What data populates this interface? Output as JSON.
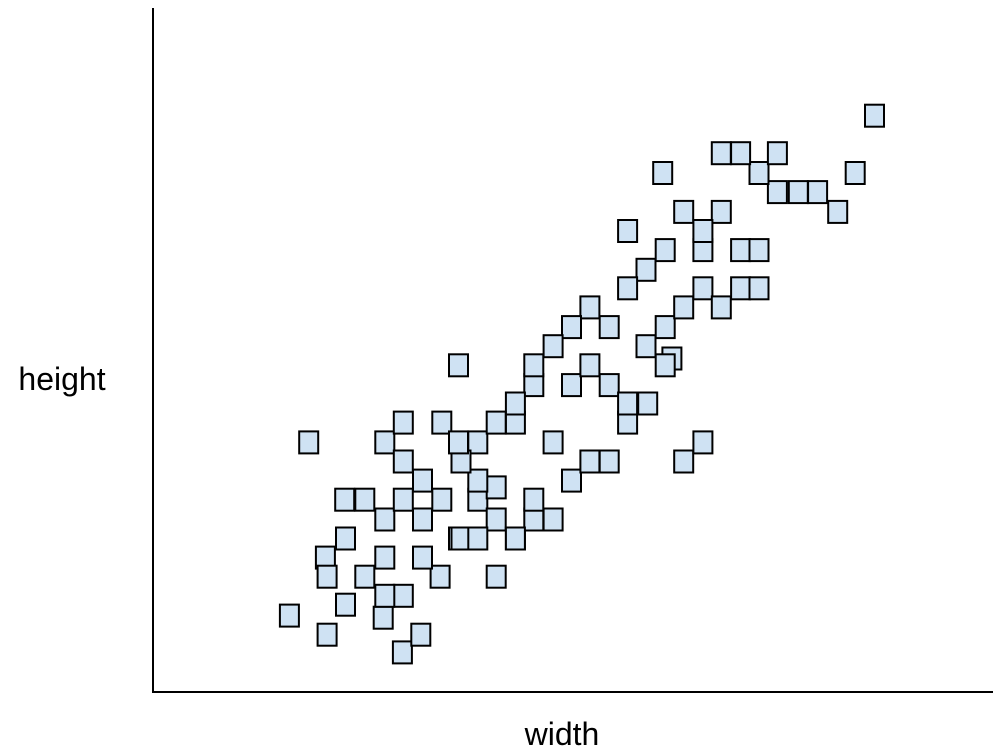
{
  "chart_data": {
    "type": "scatter",
    "title": "",
    "xlabel": "width",
    "ylabel": "height",
    "xlim": [
      0,
      100
    ],
    "ylim": [
      0,
      100
    ],
    "grid": false,
    "legend": "none",
    "marker": "square",
    "colors": {
      "fill": "#cfe2f3",
      "stroke": "#000000",
      "axis": "#000000"
    },
    "series": [
      {
        "points": [
          [
            16.3,
            11.2
          ],
          [
            20.8,
            8.4
          ],
          [
            23.0,
            12.8
          ],
          [
            25.3,
            16.9
          ],
          [
            27.5,
            10.9
          ],
          [
            29.8,
            5.8
          ],
          [
            32.0,
            8.4
          ],
          [
            34.3,
            16.9
          ],
          [
            36.5,
            22.5
          ],
          [
            38.8,
            28.2
          ],
          [
            41.0,
            25.3
          ],
          [
            43.3,
            22.5
          ],
          [
            45.5,
            25.3
          ],
          [
            47.8,
            25.3
          ],
          [
            50.0,
            31.0
          ],
          [
            52.2,
            33.8
          ],
          [
            54.5,
            33.8
          ],
          [
            56.7,
            39.5
          ],
          [
            27.7,
            36.6
          ],
          [
            18.6,
            36.6
          ],
          [
            22.9,
            28.2
          ],
          [
            20.6,
            19.7
          ],
          [
            29.9,
            39.5
          ],
          [
            32.2,
            31.0
          ],
          [
            34.5,
            28.2
          ],
          [
            36.8,
            22.5
          ],
          [
            38.8,
            36.6
          ],
          [
            41.0,
            30.0
          ],
          [
            43.3,
            39.5
          ],
          [
            45.5,
            45.0
          ],
          [
            47.8,
            36.6
          ],
          [
            50.0,
            45.0
          ],
          [
            52.2,
            47.9
          ],
          [
            54.5,
            45.0
          ],
          [
            56.7,
            42.3
          ],
          [
            58.9,
            50.7
          ],
          [
            61.2,
            53.5
          ],
          [
            63.4,
            56.4
          ],
          [
            65.7,
            59.2
          ],
          [
            67.9,
            56.4
          ],
          [
            70.2,
            59.2
          ],
          [
            72.4,
            59.2
          ],
          [
            65.7,
            64.8
          ],
          [
            67.9,
            70.4
          ],
          [
            70.2,
            64.8
          ],
          [
            72.4,
            64.8
          ],
          [
            74.6,
            73.3
          ],
          [
            77.1,
            73.3
          ],
          [
            79.4,
            73.3
          ],
          [
            81.8,
            70.4
          ],
          [
            83.9,
            76.1
          ],
          [
            86.2,
            84.5
          ],
          [
            72.4,
            76.1
          ],
          [
            74.6,
            79.0
          ],
          [
            70.2,
            79.0
          ],
          [
            67.9,
            79.0
          ],
          [
            63.4,
            70.4
          ],
          [
            60.9,
            76.1
          ],
          [
            58.9,
            61.9
          ],
          [
            56.7,
            59.2
          ],
          [
            54.5,
            53.5
          ],
          [
            52.2,
            56.4
          ],
          [
            50.0,
            53.5
          ],
          [
            47.8,
            50.7
          ],
          [
            45.5,
            47.9
          ],
          [
            43.3,
            42.3
          ],
          [
            41.0,
            39.5
          ],
          [
            38.8,
            31.0
          ],
          [
            36.8,
            33.8
          ],
          [
            34.5,
            39.5
          ],
          [
            32.2,
            25.3
          ],
          [
            29.9,
            33.8
          ],
          [
            27.7,
            25.3
          ],
          [
            25.3,
            28.2
          ],
          [
            23.0,
            22.5
          ],
          [
            20.8,
            16.9
          ],
          [
            27.7,
            19.7
          ],
          [
            29.9,
            14.1
          ],
          [
            32.2,
            19.7
          ],
          [
            36.5,
            47.9
          ],
          [
            62.0,
            48.9
          ],
          [
            63.4,
            33.8
          ],
          [
            65.7,
            36.6
          ],
          [
            59.1,
            42.3
          ],
          [
            61.2,
            47.9
          ],
          [
            56.7,
            67.6
          ],
          [
            61.2,
            64.8
          ],
          [
            65.7,
            67.6
          ],
          [
            43.3,
            22.5
          ],
          [
            45.5,
            28.2
          ],
          [
            38.8,
            22.5
          ],
          [
            41.0,
            16.9
          ],
          [
            36.5,
            36.6
          ],
          [
            29.9,
            28.2
          ],
          [
            27.7,
            14.1
          ]
        ]
      }
    ]
  }
}
